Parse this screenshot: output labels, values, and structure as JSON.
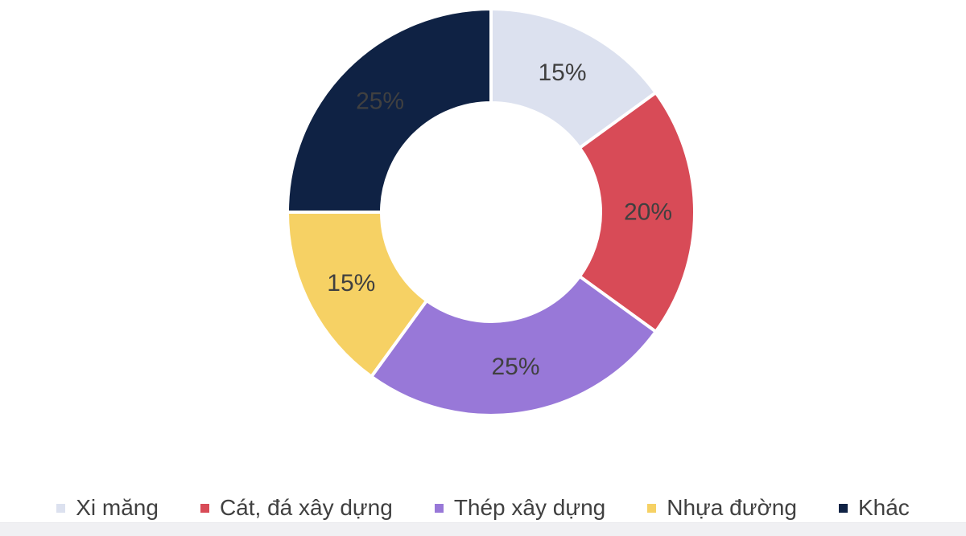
{
  "chart_data": {
    "type": "pie",
    "subtype": "donut",
    "title": "",
    "legend_position": "bottom",
    "direction": "clockwise",
    "start_angle_deg": 0,
    "background_color": "#ffffff",
    "bottom_strip_color": "#f0f0f3",
    "data_label_color": "#404040",
    "legend_text_color": "#404040",
    "slices": [
      {
        "label": "Xi măng",
        "value": 15,
        "pct_label": "15%",
        "color": "#DCE1EF"
      },
      {
        "label": "Cát, đá xây dựng",
        "value": 20,
        "pct_label": "20%",
        "color": "#D84B57"
      },
      {
        "label": "Thép xây dựng",
        "value": 25,
        "pct_label": "25%",
        "color": "#9878D8"
      },
      {
        "label": "Nhựa đường",
        "value": 15,
        "pct_label": "15%",
        "color": "#F6D164"
      },
      {
        "label": "Khác",
        "value": 25,
        "pct_label": "25%",
        "color": "#0F2244"
      }
    ]
  }
}
